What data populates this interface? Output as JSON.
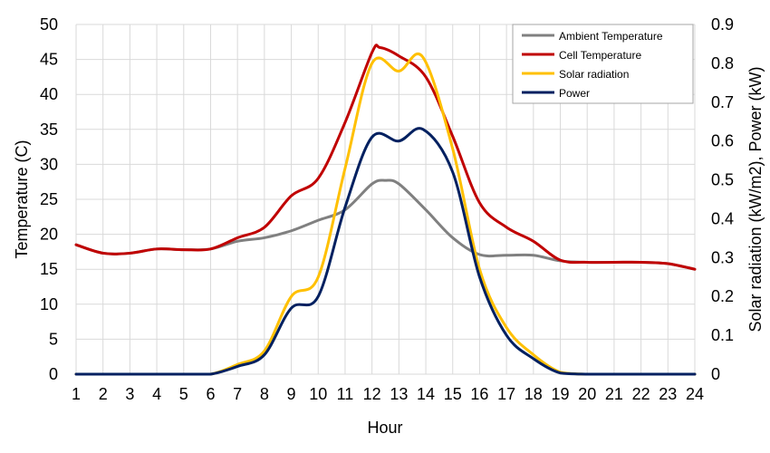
{
  "chart_data": {
    "type": "line",
    "xlabel": "Hour",
    "ylabel_left": "Temperature (C)",
    "ylabel_right": "Solar radiation (kW/m2), Power (kW)",
    "x": [
      1,
      2,
      3,
      4,
      5,
      6,
      7,
      8,
      9,
      10,
      11,
      12,
      13,
      14,
      15,
      16,
      17,
      18,
      19,
      20,
      21,
      22,
      23,
      24
    ],
    "xlim": [
      1,
      24
    ],
    "ylim_left": [
      0,
      50
    ],
    "ylim_right": [
      0,
      0.9
    ],
    "yticks_left": [
      "0",
      "5",
      "10",
      "15",
      "20",
      "25",
      "30",
      "35",
      "40",
      "45",
      "50"
    ],
    "yticks_right": [
      "0",
      "0.1",
      "0.2",
      "0.3",
      "0.4",
      "0.5",
      "0.6",
      "0.7",
      "0.8",
      "0.9"
    ],
    "grid": true,
    "legend_position": "top-right",
    "series": [
      {
        "name": "Ambient Temperature",
        "axis": "left",
        "color": "#808080",
        "x": [
          1,
          2,
          3,
          4,
          5,
          6,
          7,
          8,
          9,
          10,
          11,
          12,
          12.5,
          13,
          14,
          15,
          16,
          17,
          18,
          19,
          20,
          21,
          22,
          23,
          24
        ],
        "y": [
          18.5,
          17.3,
          17.3,
          17.9,
          17.8,
          17.9,
          19.0,
          19.5,
          20.5,
          22.0,
          23.5,
          27.2,
          27.7,
          27.2,
          23.5,
          19.5,
          17.1,
          17.0,
          17.0,
          16.2,
          16.0,
          16.0,
          16.0,
          15.8,
          15.0
        ]
      },
      {
        "name": "Cell Temperature",
        "axis": "left",
        "color": "#C00000",
        "x": [
          1,
          2,
          3,
          4,
          5,
          6,
          7,
          8,
          9,
          10,
          11,
          12,
          12.3,
          13,
          14,
          15,
          16,
          17,
          18,
          19,
          20,
          21,
          22,
          23,
          24
        ],
        "y": [
          18.5,
          17.3,
          17.3,
          17.9,
          17.8,
          17.9,
          19.5,
          21.0,
          25.5,
          28.0,
          36.0,
          46.0,
          46.7,
          45.5,
          42.5,
          34.0,
          24.5,
          21.0,
          19.0,
          16.3,
          16.0,
          16.0,
          16.0,
          15.8,
          15.0
        ]
      },
      {
        "name": "Solar radiation",
        "axis": "right",
        "color": "#FFC000",
        "x": [
          1,
          2,
          3,
          4,
          5,
          6,
          7,
          8,
          9,
          10,
          11,
          12,
          13,
          13.9,
          15,
          16,
          17,
          18,
          19,
          20,
          21,
          22,
          23,
          24
        ],
        "y": [
          0,
          0,
          0,
          0,
          0,
          0,
          0.025,
          0.06,
          0.2,
          0.25,
          0.53,
          0.8,
          0.78,
          0.815,
          0.58,
          0.27,
          0.12,
          0.05,
          0.005,
          0,
          0,
          0,
          0,
          0
        ]
      },
      {
        "name": "Power",
        "axis": "right",
        "color": "#002060",
        "x": [
          1,
          2,
          3,
          4,
          5,
          6,
          7,
          8,
          9,
          10,
          11,
          12,
          13,
          13.9,
          15,
          16,
          17,
          18,
          19,
          20,
          21,
          22,
          23,
          24
        ],
        "y": [
          0,
          0,
          0,
          0,
          0,
          0,
          0.02,
          0.05,
          0.17,
          0.2,
          0.43,
          0.61,
          0.6,
          0.63,
          0.52,
          0.25,
          0.1,
          0.04,
          0.003,
          0,
          0,
          0,
          0,
          0
        ]
      }
    ]
  }
}
